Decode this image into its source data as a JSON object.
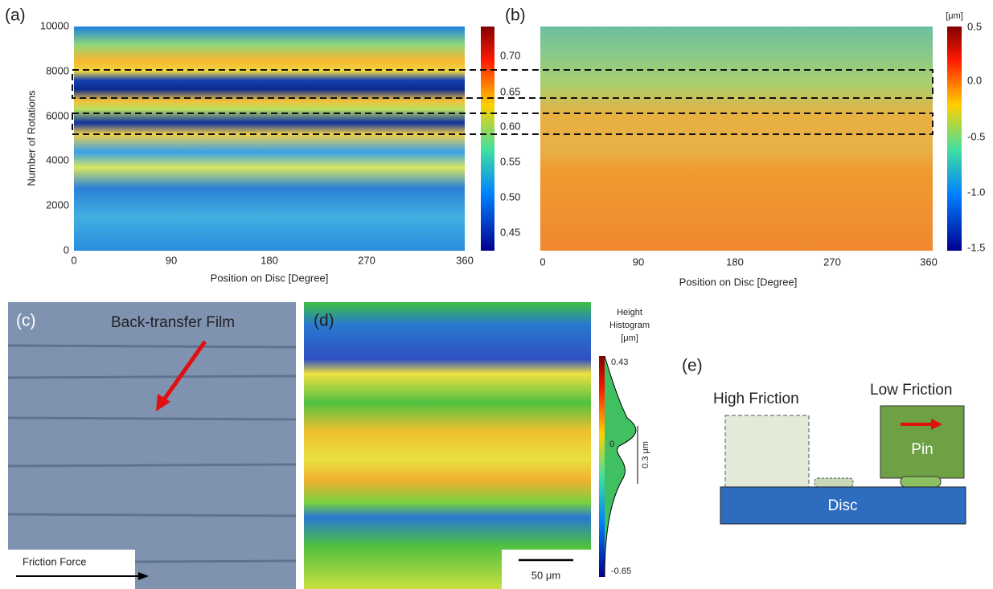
{
  "panels": {
    "a": {
      "label": "(a)",
      "ylabel": "Number of Rotations",
      "xlabel": "Position on Disc [Degree]",
      "yticks": [
        "0",
        "2000",
        "4000",
        "6000",
        "8000",
        "10000"
      ],
      "xticks": [
        "0",
        "90",
        "180",
        "270",
        "360"
      ],
      "colorbar": [
        "0.70",
        "0.65",
        "0.60",
        "0.55",
        "0.50",
        "0.45"
      ]
    },
    "b": {
      "label": "(b)",
      "xlabel": "Position on Disc [Degree]",
      "xticks": [
        "0",
        "90",
        "180",
        "270",
        "360"
      ],
      "unit": "[μm]",
      "colorbar": [
        "0.5",
        "0.0",
        "-0.5",
        "-1.0",
        "-1.5"
      ]
    },
    "c": {
      "label": "(c)",
      "annotation": "Back-transfer Film",
      "force": "Friction Force"
    },
    "d": {
      "label": "(d)",
      "scalebar": "50 μm",
      "hist_title": [
        "Height",
        "Histogram",
        "[μm]"
      ],
      "colorbar": [
        "0.43",
        "0",
        "-0.65"
      ],
      "range": "0.3 μm"
    },
    "e": {
      "label": "(e)",
      "high": "High Friction",
      "low": "Low Friction",
      "pin": "Pin",
      "disc": "Disc"
    }
  }
}
